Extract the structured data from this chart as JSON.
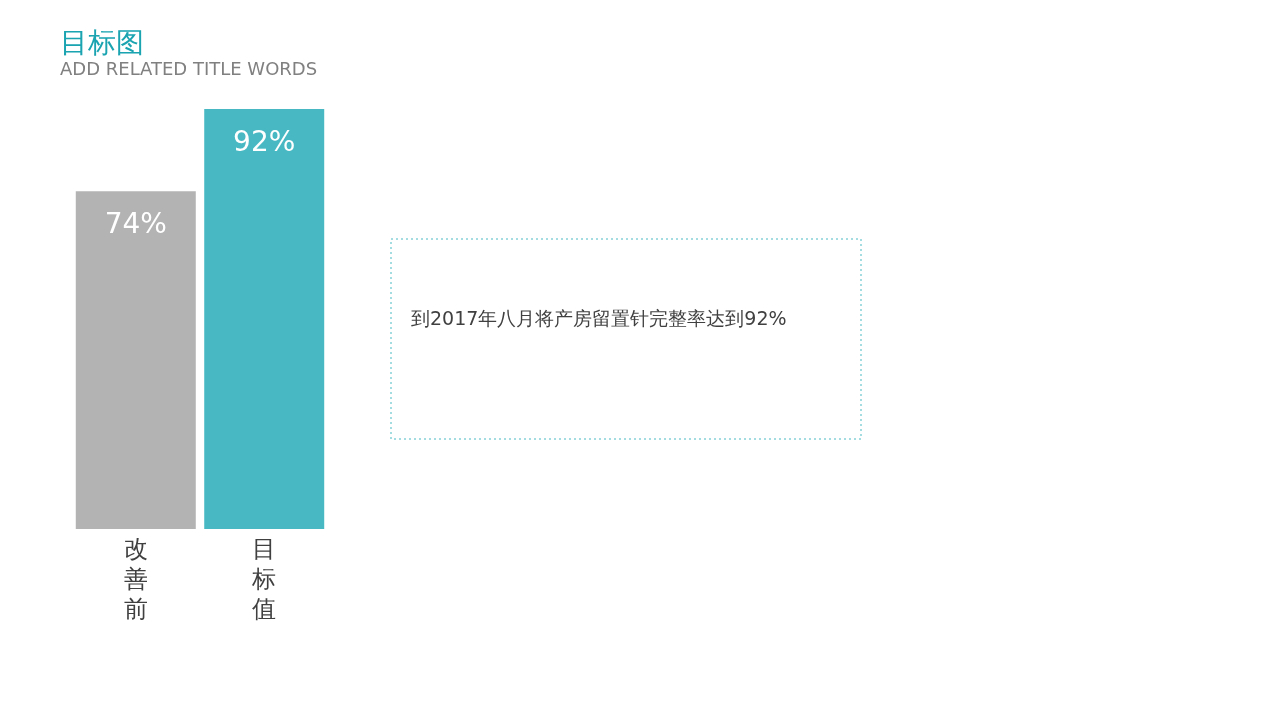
{
  "chart_data": {
    "type": "bar",
    "title": "目标图",
    "subtitle": "ADD RELATED TITLE WORDS",
    "categories": [
      "改善前",
      "目标值"
    ],
    "values": [
      74,
      92
    ],
    "colors": [
      "#b3b3b3",
      "#48b9c3"
    ],
    "value_labels": [
      "74%",
      "92%"
    ],
    "annotations": [
      "到2017年八月将产房留置针完整率达到92%"
    ]
  }
}
